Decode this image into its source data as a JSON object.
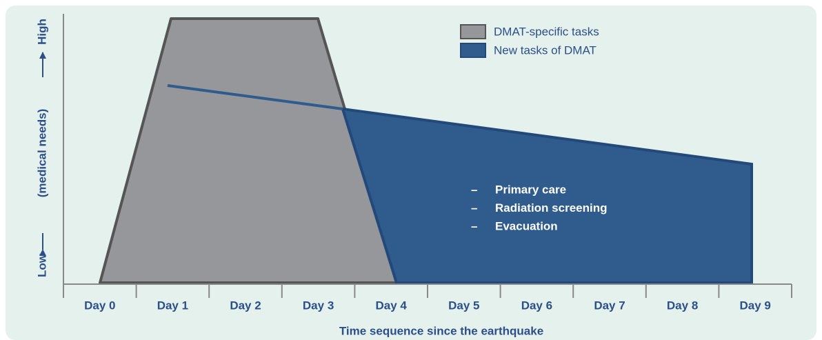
{
  "legend": [
    "DMAT-specific tasks",
    "New tasks of DMAT"
  ],
  "y_axis": {
    "low": "Low",
    "middle": "(medical needs)",
    "high": "High"
  },
  "x_axis": {
    "title": "Time sequence since the earthquake",
    "categories": [
      "Day 0",
      "Day 1",
      "Day 2",
      "Day 3",
      "Day 4",
      "Day 5",
      "Day 6",
      "Day 7",
      "Day 8",
      "Day 9"
    ]
  },
  "new_tasks": [
    "Primary care",
    "Radiation screening",
    "Evacuation"
  ],
  "bullet": "–"
}
